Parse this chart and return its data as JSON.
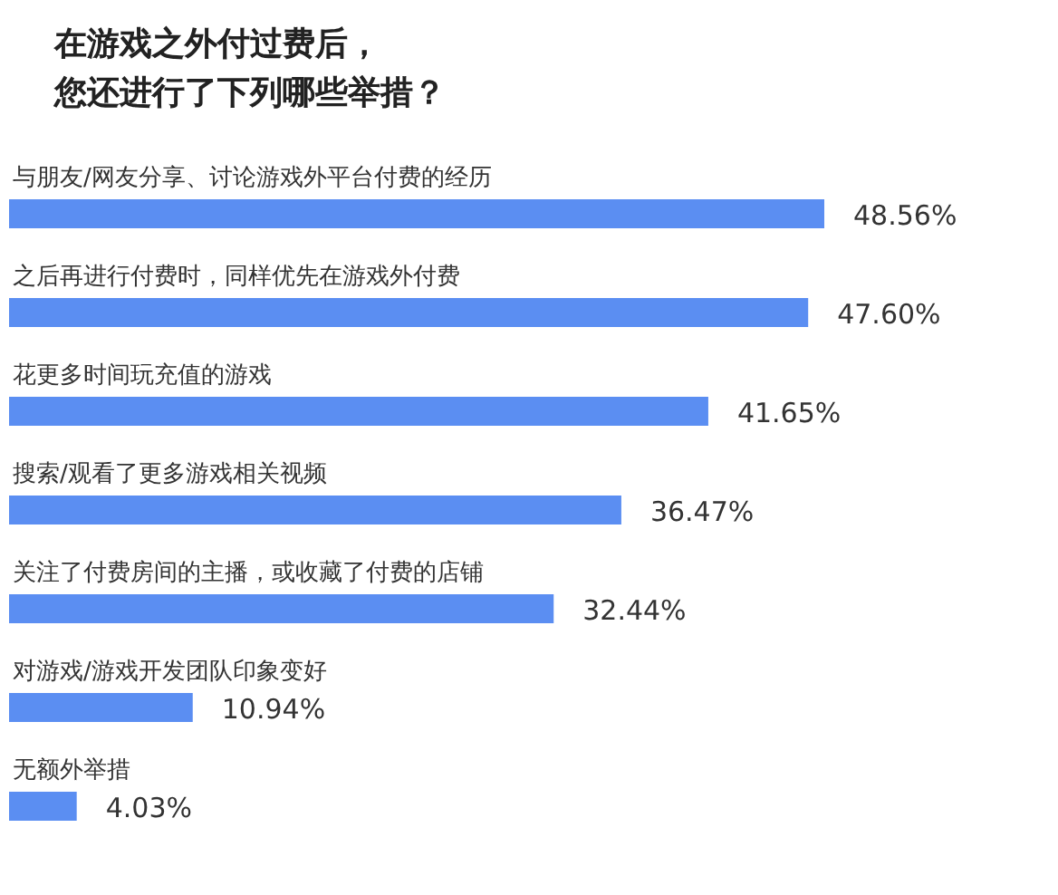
{
  "chart_data": {
    "type": "bar",
    "orientation": "horizontal",
    "title": "在游戏之外付过费后，您还进行了下列哪些举措？",
    "categories": [
      "与朋友/网友分享、讨论游戏外平台付费的经历",
      "之后再进行付费时，同样优先在游戏外付费",
      "花更多时间玩充值的游戏",
      "搜索/观看了更多游戏相关视频",
      "关注了付费房间的主播，或收藏了付费的店铺",
      "对游戏/游戏开发团队印象变好",
      "无额外举措"
    ],
    "values": [
      48.56,
      47.6,
      41.65,
      36.47,
      32.44,
      10.94,
      4.03
    ],
    "value_labels": [
      "48.56%",
      "47.60%",
      "41.65%",
      "36.47%",
      "32.44%",
      "10.94%",
      "4.03%"
    ],
    "color": "#5b8ef2"
  }
}
